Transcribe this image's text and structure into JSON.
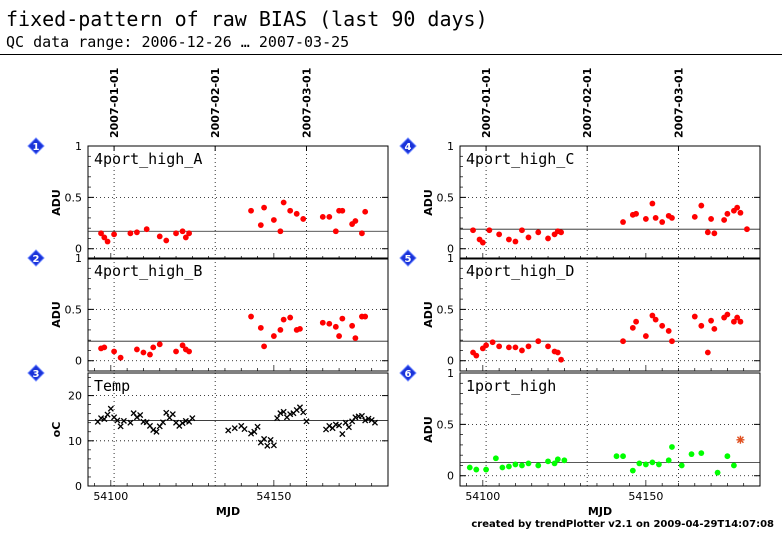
{
  "title": "fixed-pattern of raw BIAS (last 90 days)",
  "subtitle": "QC data range: 2006-12-26 … 2007-03-25",
  "credit": "created by trendPlotter v2.1 on 2009-04-29T14:07:08",
  "colors": {
    "red": "#ff0000",
    "green": "#00ff00",
    "black": "#000000",
    "outlier": "#e05020",
    "badge": "#1a33d9"
  },
  "chart_data": [
    {
      "panel_number": "1",
      "type": "scatter",
      "label": "4port_high_A",
      "ylabel": "ADU",
      "xlim": [
        54093,
        54185
      ],
      "ylim": [
        -0.1,
        1
      ],
      "yticks": [
        0,
        0.5,
        1
      ],
      "ytick_labels": [
        "0",
        "0.5",
        "1"
      ],
      "date_ticks": [
        "2007-01-01",
        "2007-02-01",
        "2007-03-01"
      ],
      "reference_line": 0.17,
      "marker": "dot",
      "color": "red",
      "x": [
        54097,
        54098,
        54099,
        54101,
        54106,
        54108,
        54111,
        54115,
        54117,
        54120,
        54122,
        54123,
        54124,
        54143,
        54146,
        54147,
        54150,
        54152,
        54153,
        54155,
        54157,
        54159,
        54165,
        54167,
        54169,
        54170,
        54171,
        54174,
        54175,
        54177,
        54178
      ],
      "y": [
        0.15,
        0.11,
        0.07,
        0.14,
        0.15,
        0.16,
        0.19,
        0.12,
        0.08,
        0.15,
        0.17,
        0.11,
        0.15,
        0.37,
        0.23,
        0.4,
        0.28,
        0.17,
        0.45,
        0.37,
        0.34,
        0.29,
        0.31,
        0.31,
        0.17,
        0.37,
        0.37,
        0.24,
        0.27,
        0.15,
        0.36
      ]
    },
    {
      "panel_number": "2",
      "type": "scatter",
      "label": "4port_high_B",
      "ylabel": "ADU",
      "xlim": [
        54093,
        54185
      ],
      "ylim": [
        -0.1,
        1
      ],
      "yticks": [
        0,
        0.5,
        1
      ],
      "ytick_labels": [
        "0",
        "0.5",
        "1"
      ],
      "date_ticks": [
        "2007-01-01",
        "2007-02-01",
        "2007-03-01"
      ],
      "reference_line": 0.19,
      "marker": "dot",
      "color": "red",
      "x": [
        54097,
        54098,
        54101,
        54103,
        54108,
        54110,
        54112,
        54113,
        54115,
        54120,
        54122,
        54123,
        54124,
        54143,
        54146,
        54147,
        54150,
        54152,
        54153,
        54155,
        54157,
        54158,
        54165,
        54167,
        54169,
        54170,
        54171,
        54174,
        54175,
        54177,
        54178
      ],
      "y": [
        0.12,
        0.13,
        0.09,
        0.03,
        0.11,
        0.08,
        0.06,
        0.13,
        0.16,
        0.09,
        0.15,
        0.11,
        0.09,
        0.43,
        0.32,
        0.14,
        0.24,
        0.3,
        0.4,
        0.42,
        0.3,
        0.31,
        0.37,
        0.36,
        0.33,
        0.24,
        0.41,
        0.34,
        0.22,
        0.43,
        0.43
      ]
    },
    {
      "panel_number": "3",
      "type": "scatter",
      "label": "Temp",
      "ylabel": "oC",
      "xlim": [
        54093,
        54185
      ],
      "ylim": [
        0,
        25
      ],
      "yticks": [
        0,
        10,
        20
      ],
      "ytick_labels": [
        "0",
        "10",
        "20"
      ],
      "xticks": [
        54100,
        54150
      ],
      "xtick_labels": [
        "54100",
        "54150"
      ],
      "xlabel": "MJD",
      "reference_line": 14.5,
      "marker": "cross",
      "color": "black",
      "x": [
        54096,
        54097,
        54098,
        54099,
        54100,
        54101,
        54102,
        54103,
        54104,
        54106,
        54107,
        54108,
        54109,
        54110,
        54111,
        54112,
        54113,
        54114,
        54115,
        54116,
        54117,
        54118,
        54119,
        54120,
        54121,
        54122,
        54123,
        54124,
        54125,
        54136,
        54138,
        54140,
        54141,
        54143,
        54144,
        54145,
        54146,
        54147,
        54148,
        54149,
        54150,
        54151,
        54152,
        54153,
        54154,
        54155,
        54156,
        54157,
        54158,
        54159,
        54160,
        54166,
        54167,
        54168,
        54169,
        54170,
        54171,
        54172,
        54173,
        54174,
        54175,
        54176,
        54177,
        54178,
        54179,
        54180,
        54181
      ],
      "y": [
        14.2,
        15.0,
        14.8,
        15.8,
        17.1,
        15.2,
        14.5,
        13.2,
        14.4,
        14.0,
        16.1,
        15.2,
        15.7,
        14.2,
        14.1,
        13.3,
        12.4,
        12.0,
        13.2,
        14.1,
        16.2,
        15.1,
        15.9,
        14.0,
        13.3,
        13.9,
        14.4,
        14.2,
        15.0,
        12.3,
        12.8,
        13.3,
        12.6,
        11.6,
        12.0,
        13.1,
        9.6,
        10.4,
        8.9,
        10.2,
        9.0,
        15.0,
        16.1,
        16.4,
        15.2,
        15.9,
        16.1,
        16.8,
        17.4,
        16.3,
        14.3,
        12.5,
        13.3,
        12.8,
        13.6,
        13.4,
        11.5,
        14.0,
        13.0,
        14.3,
        15.2,
        15.4,
        15.5,
        14.5,
        14.9,
        14.6,
        14.0
      ]
    },
    {
      "panel_number": "4",
      "type": "scatter",
      "label": "4port_high_C",
      "ylabel": "ADU",
      "xlim": [
        54093,
        54185
      ],
      "ylim": [
        -0.1,
        1
      ],
      "yticks": [
        0,
        0.5,
        1
      ],
      "ytick_labels": [
        "0",
        "0.5",
        "1"
      ],
      "date_ticks": [
        "2007-01-01",
        "2007-02-01",
        "2007-03-01"
      ],
      "reference_line": 0.19,
      "marker": "dot",
      "color": "red",
      "x": [
        54097,
        54099,
        54100,
        54102,
        54105,
        54108,
        54110,
        54112,
        54114,
        54117,
        54120,
        54122,
        54123,
        54124,
        54143,
        54146,
        54147,
        54150,
        54152,
        54153,
        54155,
        54157,
        54158,
        54165,
        54167,
        54169,
        54170,
        54171,
        54174,
        54175,
        54177,
        54178,
        54179,
        54181
      ],
      "y": [
        0.18,
        0.09,
        0.06,
        0.18,
        0.14,
        0.09,
        0.07,
        0.18,
        0.11,
        0.16,
        0.1,
        0.14,
        0.17,
        0.16,
        0.26,
        0.33,
        0.34,
        0.29,
        0.44,
        0.3,
        0.26,
        0.32,
        0.3,
        0.31,
        0.42,
        0.16,
        0.29,
        0.15,
        0.28,
        0.34,
        0.37,
        0.4,
        0.35,
        0.19
      ]
    },
    {
      "panel_number": "5",
      "type": "scatter",
      "label": "4port_high_D",
      "ylabel": "ADU",
      "xlim": [
        54093,
        54185
      ],
      "ylim": [
        -0.1,
        1
      ],
      "yticks": [
        0,
        0.5,
        1
      ],
      "ytick_labels": [
        "0",
        "0.5",
        "1"
      ],
      "date_ticks": [
        "2007-01-01",
        "2007-02-01",
        "2007-03-01"
      ],
      "reference_line": 0.19,
      "marker": "dot",
      "color": "red",
      "x": [
        54097,
        54098,
        54100,
        54101,
        54103,
        54105,
        54108,
        54110,
        54112,
        54114,
        54117,
        54120,
        54122,
        54123,
        54124,
        54143,
        54146,
        54147,
        54150,
        54152,
        54153,
        54155,
        54157,
        54158,
        54165,
        54167,
        54169,
        54170,
        54171,
        54174,
        54175,
        54177,
        54178,
        54179
      ],
      "y": [
        0.08,
        0.05,
        0.12,
        0.15,
        0.18,
        0.14,
        0.13,
        0.13,
        0.1,
        0.14,
        0.19,
        0.14,
        0.09,
        0.08,
        0.01,
        0.19,
        0.32,
        0.38,
        0.24,
        0.44,
        0.4,
        0.34,
        0.29,
        0.19,
        0.43,
        0.34,
        0.08,
        0.39,
        0.31,
        0.42,
        0.45,
        0.38,
        0.42,
        0.38
      ]
    },
    {
      "panel_number": "6",
      "type": "scatter",
      "label": "1port_high",
      "ylabel": "ADU",
      "xlim": [
        54093,
        54185
      ],
      "ylim": [
        -0.1,
        1
      ],
      "yticks": [
        0,
        0.5,
        1
      ],
      "ytick_labels": [
        "0",
        "0.5",
        "1"
      ],
      "xticks": [
        54100,
        54150
      ],
      "xtick_labels": [
        "54100",
        "54150"
      ],
      "xlabel": "MJD",
      "reference_line": 0.13,
      "marker": "dot",
      "color": "green",
      "x": [
        54096,
        54098,
        54101,
        54104,
        54106,
        54108,
        54110,
        54112,
        54114,
        54117,
        54120,
        54122,
        54123,
        54125,
        54141,
        54143,
        54146,
        54148,
        54150,
        54152,
        54154,
        54157,
        54158,
        54161,
        54164,
        54167,
        54172,
        54175,
        54177
      ],
      "y": [
        0.08,
        0.06,
        0.06,
        0.17,
        0.08,
        0.09,
        0.11,
        0.1,
        0.12,
        0.1,
        0.14,
        0.12,
        0.16,
        0.15,
        0.19,
        0.19,
        0.05,
        0.12,
        0.11,
        0.13,
        0.11,
        0.15,
        0.28,
        0.1,
        0.21,
        0.22,
        0.03,
        0.19,
        0.1
      ],
      "outlier": {
        "x": 54179,
        "y": 0.35,
        "marker": "asterisk",
        "color": "outlier"
      }
    }
  ]
}
